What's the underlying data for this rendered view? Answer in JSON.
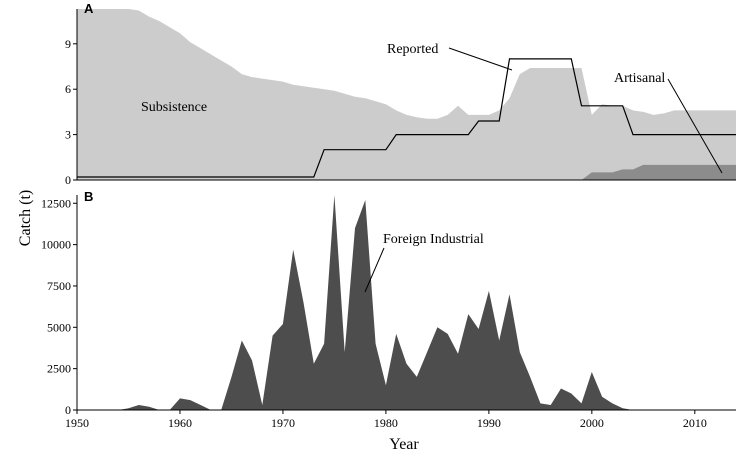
{
  "chart_data": [
    {
      "panel": "A",
      "type": "area",
      "ylim": [
        0,
        11.3
      ],
      "xlim": [
        1950,
        2014
      ],
      "yticks": [
        0,
        3,
        6,
        9
      ],
      "grid": false,
      "legend": "none",
      "series": [
        {
          "name": "Subsistence",
          "color": "#cccccc",
          "x": [
            1950,
            1951,
            1952,
            1953,
            1954,
            1955,
            1956,
            1957,
            1958,
            1959,
            1960,
            1961,
            1962,
            1963,
            1964,
            1965,
            1966,
            1967,
            1968,
            1969,
            1970,
            1971,
            1972,
            1973,
            1974,
            1975,
            1976,
            1977,
            1978,
            1979,
            1980,
            1981,
            1982,
            1983,
            1984,
            1985,
            1986,
            1987,
            1988,
            1989,
            1990,
            1991,
            1992,
            1993,
            1994,
            1995,
            1996,
            1997,
            1998,
            1999,
            2000,
            2001,
            2002,
            2003,
            2004,
            2005,
            2006,
            2007,
            2008,
            2009,
            2010,
            2011,
            2012,
            2013,
            2014
          ],
          "values": [
            11.5,
            11.5,
            11.5,
            11.5,
            11.5,
            11.5,
            11.2,
            10.8,
            10.5,
            10.1,
            9.7,
            9.1,
            8.7,
            8.3,
            7.9,
            7.5,
            7.0,
            6.8,
            6.7,
            6.6,
            6.5,
            6.3,
            6.2,
            6.1,
            6.0,
            5.9,
            5.7,
            5.5,
            5.4,
            5.2,
            5.0,
            4.6,
            4.3,
            4.15,
            4.05,
            4.05,
            4.3,
            4.9,
            4.3,
            4.3,
            4.3,
            4.6,
            5.4,
            7.0,
            7.4,
            7.4,
            7.4,
            7.4,
            7.4,
            7.4,
            4.3,
            5.0,
            4.9,
            4.9,
            4.6,
            4.5,
            4.3,
            4.4,
            4.6,
            4.6,
            4.6,
            4.6,
            4.6,
            4.6,
            4.6
          ]
        },
        {
          "name": "Artisanal",
          "color": "#8c8c8c",
          "x": [
            1950,
            1999,
            2000,
            2002,
            2003,
            2004,
            2005,
            2014
          ],
          "values": [
            0,
            0,
            0.5,
            0.5,
            0.7,
            0.7,
            1.0,
            1.0
          ]
        }
      ],
      "reported": {
        "name": "Reported",
        "x": [
          1950,
          1973,
          1974,
          1980,
          1981,
          1988,
          1989,
          1991,
          1992,
          1998,
          1999,
          2003,
          2004,
          2014
        ],
        "values": [
          0.2,
          0.2,
          2.0,
          2.0,
          3.0,
          3.0,
          3.9,
          3.9,
          8.0,
          8.0,
          4.9,
          4.9,
          3.0,
          3.0
        ]
      },
      "annotations": [
        "Subsistence",
        "Reported",
        "Artisanal"
      ]
    },
    {
      "panel": "B",
      "type": "area",
      "ylim": [
        0,
        13000
      ],
      "xlim": [
        1950,
        2014
      ],
      "yticks": [
        0,
        2500,
        5000,
        7500,
        10000,
        12500
      ],
      "xticks": [
        1950,
        1960,
        1970,
        1980,
        1990,
        2000,
        2010
      ],
      "grid": false,
      "legend": "none",
      "series": [
        {
          "name": "Foreign Industrial",
          "color": "#4d4d4d",
          "x": [
            1950,
            1954,
            1955,
            1956,
            1957,
            1958,
            1959,
            1960,
            1961,
            1962,
            1963,
            1964,
            1965,
            1966,
            1967,
            1968,
            1969,
            1970,
            1971,
            1972,
            1973,
            1974,
            1975,
            1976,
            1977,
            1978,
            1979,
            1980,
            1981,
            1982,
            1983,
            1984,
            1985,
            1986,
            1987,
            1988,
            1989,
            1990,
            1991,
            1992,
            1993,
            1994,
            1995,
            1996,
            1997,
            1998,
            1999,
            2000,
            2001,
            2002,
            2003,
            2004,
            2014
          ],
          "values": [
            0,
            0,
            100,
            300,
            200,
            0,
            0,
            700,
            600,
            300,
            0,
            0,
            2000,
            4200,
            3000,
            300,
            4500,
            5200,
            9700,
            6500,
            2800,
            4000,
            13200,
            3500,
            11000,
            12700,
            4000,
            1500,
            4600,
            2800,
            2000,
            3500,
            5000,
            4600,
            3400,
            5800,
            4900,
            7200,
            4200,
            7000,
            3500,
            2000,
            400,
            300,
            1300,
            1000,
            400,
            2300,
            800,
            400,
            100,
            0,
            0
          ]
        }
      ],
      "annotations": [
        "Foreign Industrial"
      ]
    }
  ],
  "figure": {
    "panel_a_label": "A",
    "panel_b_label": "B",
    "ylabel": "Catch (t)",
    "xlabel": "Year",
    "annot_subsistence": "Subsistence",
    "annot_reported": "Reported",
    "annot_artisanal": "Artisanal",
    "annot_foreign": "Foreign Industrial"
  }
}
